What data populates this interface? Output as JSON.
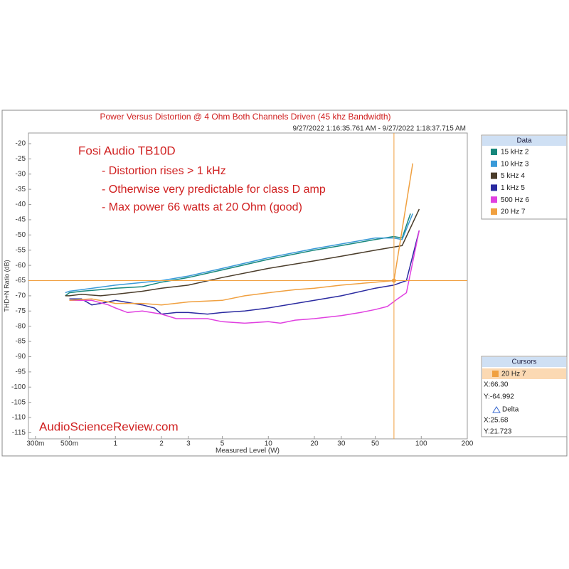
{
  "chart_data": {
    "type": "line",
    "title": "Power Versus Distortion @ 4 Ohm Both Channels Driven (45 khz Bandwidth)",
    "subtitle": "9/27/2022 1:16:35.761 AM - 9/27/2022 1:18:37.715 AM",
    "x_label": "Measured Level (W)",
    "y_label": "THD+N Ratio (dB)",
    "log_x": true,
    "grid": false,
    "xlim": [
      0.27,
      200
    ],
    "ylim": [
      -117,
      -16.5
    ],
    "xticks": [
      {
        "value": 0.3,
        "label": "300m"
      },
      {
        "value": 0.5,
        "label": "500m"
      },
      1,
      2,
      3,
      5,
      10,
      20,
      30,
      50,
      100,
      200
    ],
    "yticks": [
      -20,
      -25,
      -30,
      -35,
      -40,
      -45,
      -50,
      -55,
      -60,
      -65,
      -70,
      -75,
      -80,
      -85,
      -90,
      -95,
      -100,
      -105,
      -110,
      -115
    ],
    "annotations": [
      "Fosi Audio TB10D",
      "- Distortion rises > 1 kHz",
      "- Otherwise very predictable for class D amp",
      "- Max power 66 watts at 20 Ohm (good)"
    ],
    "watermark": "AudioScienceReview.com",
    "legend_title": "Data",
    "series": [
      {
        "name": "15 kHz 2",
        "color": "#17877c",
        "x": [
          0.47,
          0.5,
          0.6,
          0.8,
          1,
          1.5,
          2,
          3,
          5,
          10,
          20,
          30,
          50,
          66,
          75,
          85
        ],
        "values": [
          -70,
          -69,
          -68.5,
          -68,
          -67.5,
          -67,
          -65.5,
          -64,
          -61.5,
          -58,
          -55,
          -53.5,
          -51.5,
          -50.5,
          -51,
          -43
        ]
      },
      {
        "name": "10 kHz 3",
        "color": "#3a9ad8",
        "x": [
          0.47,
          0.5,
          1,
          2,
          3,
          5,
          10,
          20,
          50,
          66,
          75,
          88
        ],
        "values": [
          -69,
          -68.5,
          -66.5,
          -65,
          -63.5,
          -61,
          -57.5,
          -54.5,
          -51,
          -51,
          -51.5,
          -43
        ]
      },
      {
        "name": "5 kHz 4",
        "color": "#4a3c2a",
        "x": [
          0.47,
          0.5,
          0.6,
          0.8,
          1,
          1.5,
          2,
          3,
          5,
          10,
          20,
          30,
          50,
          66,
          75,
          97
        ],
        "values": [
          -70,
          -70,
          -69.5,
          -70,
          -69.5,
          -68.5,
          -67.5,
          -66.5,
          -64,
          -61,
          -58.5,
          -57,
          -55,
          -54,
          -53.5,
          -41.5
        ]
      },
      {
        "name": "1 kHz 5",
        "color": "#2a2aa0",
        "x": [
          0.5,
          0.6,
          0.7,
          0.8,
          1,
          1.5,
          1.8,
          2,
          2.5,
          3,
          4,
          5,
          7,
          10,
          20,
          30,
          50,
          66,
          80,
          97
        ],
        "values": [
          -71,
          -71,
          -73,
          -72.5,
          -71.5,
          -73,
          -74,
          -76,
          -75.5,
          -75.5,
          -76,
          -75.5,
          -75,
          -74,
          -71.5,
          -70,
          -67.5,
          -66.5,
          -65,
          -48.5
        ]
      },
      {
        "name": "500 Hz 6",
        "color": "#e040e0",
        "x": [
          0.5,
          0.7,
          0.9,
          1,
          1.2,
          1.5,
          2,
          2.5,
          3,
          4,
          5,
          7,
          10,
          12,
          15,
          20,
          30,
          40,
          50,
          60,
          70,
          80,
          97
        ],
        "values": [
          -71.5,
          -71.5,
          -73,
          -74,
          -75.5,
          -75,
          -76,
          -77.5,
          -77.5,
          -77.5,
          -78.5,
          -79,
          -78.5,
          -79,
          -78,
          -77.5,
          -76.5,
          -75.5,
          -74.5,
          -73.5,
          -71,
          -69,
          -48.5
        ]
      },
      {
        "name": "20 Hz 7",
        "color": "#f0a040",
        "x": [
          0.5,
          0.7,
          0.9,
          1,
          1.5,
          2,
          3,
          5,
          7,
          10,
          15,
          20,
          30,
          50,
          66.3,
          88
        ],
        "values": [
          -71.5,
          -71,
          -72,
          -72.5,
          -72.5,
          -73,
          -72,
          -71.5,
          -70,
          -69,
          -68,
          -67.5,
          -66.5,
          -65.5,
          -65,
          -26.5
        ]
      }
    ],
    "cursor": {
      "title": "Cursors",
      "active": "20 Hz 7",
      "x": {
        "value": 66.3,
        "label": "X:66.30"
      },
      "y": {
        "value": -64.992,
        "label": "Y:-64.992"
      },
      "delta_title": "Delta",
      "delta_x": "X:25.68",
      "delta_y": "Y:21.723"
    }
  }
}
